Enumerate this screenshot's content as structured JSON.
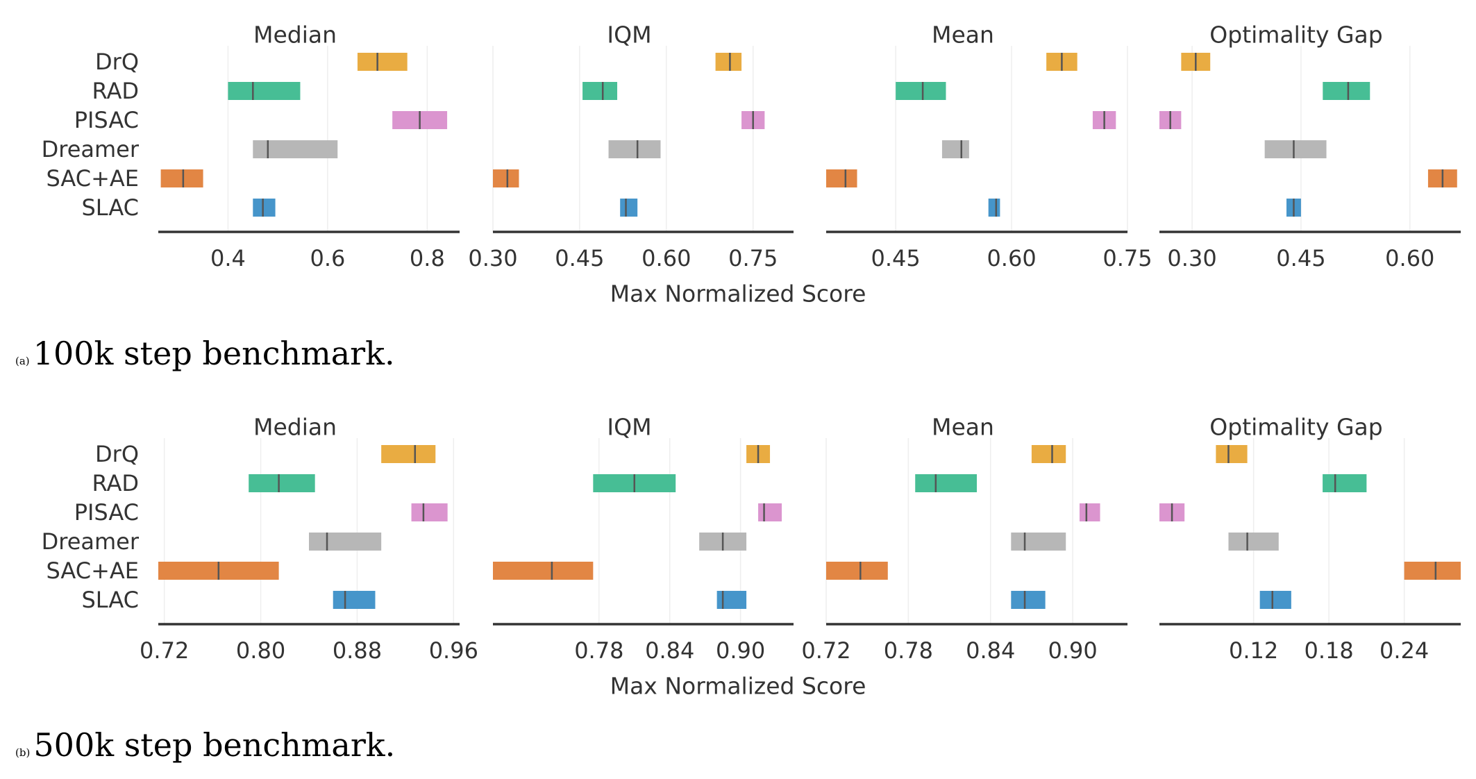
{
  "algorithms": [
    "DrQ",
    "RAD",
    "PISAC",
    "Dreamer",
    "SAC+AE",
    "SLAC"
  ],
  "colors": {
    "DrQ": "#e8a838",
    "RAD": "#3dba8f",
    "PISAC": "#d98fcc",
    "Dreamer": "#b3b3b3",
    "SAC+AE": "#e07f3a",
    "SLAC": "#3c8fc7",
    "median_line": "#555555",
    "axis": "#333333",
    "grid": "#eeeeee"
  },
  "chart_data": [
    {
      "type": "interval",
      "caption_tag": "(a)",
      "caption": "100k step benchmark.",
      "xlabel": "Max Normalized Score",
      "subplots": [
        {
          "title": "Median",
          "xlim": [
            0.26,
            0.865
          ],
          "ticks": [
            0.4,
            0.6,
            0.8
          ],
          "tick_labels": [
            "0.4",
            "0.6",
            "0.8"
          ],
          "intervals": [
            {
              "name": "DrQ",
              "low": 0.66,
              "point": 0.7,
              "high": 0.76
            },
            {
              "name": "RAD",
              "low": 0.4,
              "point": 0.45,
              "high": 0.545
            },
            {
              "name": "PISAC",
              "low": 0.73,
              "point": 0.785,
              "high": 0.84
            },
            {
              "name": "Dreamer",
              "low": 0.45,
              "point": 0.48,
              "high": 0.62
            },
            {
              "name": "SAC+AE",
              "low": 0.265,
              "point": 0.31,
              "high": 0.35
            },
            {
              "name": "SLAC",
              "low": 0.45,
              "point": 0.47,
              "high": 0.495
            }
          ]
        },
        {
          "title": "IQM",
          "xlim": [
            0.3,
            0.82
          ],
          "ticks": [
            0.3,
            0.45,
            0.6,
            0.75
          ],
          "tick_labels": [
            "0.30",
            "0.45",
            "0.60",
            "0.75"
          ],
          "intervals": [
            {
              "name": "DrQ",
              "low": 0.685,
              "point": 0.71,
              "high": 0.73
            },
            {
              "name": "RAD",
              "low": 0.455,
              "point": 0.49,
              "high": 0.515
            },
            {
              "name": "PISAC",
              "low": 0.73,
              "point": 0.75,
              "high": 0.77
            },
            {
              "name": "Dreamer",
              "low": 0.5,
              "point": 0.55,
              "high": 0.59
            },
            {
              "name": "SAC+AE",
              "low": 0.3,
              "point": 0.325,
              "high": 0.345
            },
            {
              "name": "SLAC",
              "low": 0.52,
              "point": 0.53,
              "high": 0.55
            }
          ]
        },
        {
          "title": "Mean",
          "xlim": [
            0.36,
            0.75
          ],
          "ticks": [
            0.45,
            0.6,
            0.75
          ],
          "tick_labels": [
            "0.45",
            "0.60",
            "0.75"
          ],
          "intervals": [
            {
              "name": "DrQ",
              "low": 0.645,
              "point": 0.665,
              "high": 0.685
            },
            {
              "name": "RAD",
              "low": 0.45,
              "point": 0.485,
              "high": 0.515
            },
            {
              "name": "PISAC",
              "low": 0.705,
              "point": 0.72,
              "high": 0.735
            },
            {
              "name": "Dreamer",
              "low": 0.51,
              "point": 0.535,
              "high": 0.545
            },
            {
              "name": "SAC+AE",
              "low": 0.36,
              "point": 0.385,
              "high": 0.4
            },
            {
              "name": "SLAC",
              "low": 0.57,
              "point": 0.58,
              "high": 0.585
            }
          ]
        },
        {
          "title": "Optimality Gap",
          "xlim": [
            0.255,
            0.67
          ],
          "ticks": [
            0.3,
            0.45,
            0.6
          ],
          "tick_labels": [
            "0.30",
            "0.45",
            "0.60"
          ],
          "intervals": [
            {
              "name": "DrQ",
              "low": 0.285,
              "point": 0.305,
              "high": 0.325
            },
            {
              "name": "RAD",
              "low": 0.48,
              "point": 0.515,
              "high": 0.545
            },
            {
              "name": "PISAC",
              "low": 0.255,
              "point": 0.27,
              "high": 0.285
            },
            {
              "name": "Dreamer",
              "low": 0.4,
              "point": 0.44,
              "high": 0.485
            },
            {
              "name": "SAC+AE",
              "low": 0.625,
              "point": 0.645,
              "high": 0.665
            },
            {
              "name": "SLAC",
              "low": 0.43,
              "point": 0.44,
              "high": 0.45
            }
          ]
        }
      ]
    },
    {
      "type": "interval",
      "caption_tag": "(b)",
      "caption": "500k step benchmark.",
      "xlabel": "Max Normalized Score",
      "subplots": [
        {
          "title": "Median",
          "xlim": [
            0.715,
            0.965
          ],
          "ticks": [
            0.72,
            0.8,
            0.88,
            0.96
          ],
          "tick_labels": [
            "0.72",
            "0.80",
            "0.88",
            "0.96"
          ],
          "intervals": [
            {
              "name": "DrQ",
              "low": 0.9,
              "point": 0.928,
              "high": 0.945
            },
            {
              "name": "RAD",
              "low": 0.79,
              "point": 0.815,
              "high": 0.845
            },
            {
              "name": "PISAC",
              "low": 0.925,
              "point": 0.935,
              "high": 0.955
            },
            {
              "name": "Dreamer",
              "low": 0.84,
              "point": 0.855,
              "high": 0.9
            },
            {
              "name": "SAC+AE",
              "low": 0.715,
              "point": 0.765,
              "high": 0.815
            },
            {
              "name": "SLAC",
              "low": 0.86,
              "point": 0.87,
              "high": 0.895
            }
          ]
        },
        {
          "title": "IQM",
          "xlim": [
            0.69,
            0.945
          ],
          "ticks": [
            0.78,
            0.84,
            0.9
          ],
          "tick_labels": [
            "0.78",
            "0.84",
            "0.90"
          ],
          "intervals": [
            {
              "name": "DrQ",
              "low": 0.905,
              "point": 0.915,
              "high": 0.925
            },
            {
              "name": "RAD",
              "low": 0.775,
              "point": 0.81,
              "high": 0.845
            },
            {
              "name": "PISAC",
              "low": 0.915,
              "point": 0.92,
              "high": 0.935
            },
            {
              "name": "Dreamer",
              "low": 0.865,
              "point": 0.885,
              "high": 0.905
            },
            {
              "name": "SAC+AE",
              "low": 0.69,
              "point": 0.74,
              "high": 0.775
            },
            {
              "name": "SLAC",
              "low": 0.88,
              "point": 0.885,
              "high": 0.905
            }
          ]
        },
        {
          "title": "Mean",
          "xlim": [
            0.72,
            0.94
          ],
          "ticks": [
            0.72,
            0.78,
            0.84,
            0.9
          ],
          "tick_labels": [
            "0.72",
            "0.78",
            "0.84",
            "0.90"
          ],
          "intervals": [
            {
              "name": "DrQ",
              "low": 0.87,
              "point": 0.885,
              "high": 0.895
            },
            {
              "name": "RAD",
              "low": 0.785,
              "point": 0.8,
              "high": 0.83
            },
            {
              "name": "PISAC",
              "low": 0.905,
              "point": 0.91,
              "high": 0.92
            },
            {
              "name": "Dreamer",
              "low": 0.855,
              "point": 0.865,
              "high": 0.895
            },
            {
              "name": "SAC+AE",
              "low": 0.72,
              "point": 0.745,
              "high": 0.765
            },
            {
              "name": "SLAC",
              "low": 0.855,
              "point": 0.865,
              "high": 0.88
            }
          ]
        },
        {
          "title": "Optimality Gap",
          "xlim": [
            0.045,
            0.285
          ],
          "ticks": [
            0.12,
            0.18,
            0.24
          ],
          "tick_labels": [
            "0.12",
            "0.18",
            "0.24"
          ],
          "intervals": [
            {
              "name": "DrQ",
              "low": 0.09,
              "point": 0.1,
              "high": 0.115
            },
            {
              "name": "RAD",
              "low": 0.175,
              "point": 0.185,
              "high": 0.21
            },
            {
              "name": "PISAC",
              "low": 0.045,
              "point": 0.055,
              "high": 0.065
            },
            {
              "name": "Dreamer",
              "low": 0.1,
              "point": 0.115,
              "high": 0.14
            },
            {
              "name": "SAC+AE",
              "low": 0.24,
              "point": 0.265,
              "high": 0.285
            },
            {
              "name": "SLAC",
              "low": 0.125,
              "point": 0.135,
              "high": 0.15
            }
          ]
        }
      ]
    }
  ]
}
